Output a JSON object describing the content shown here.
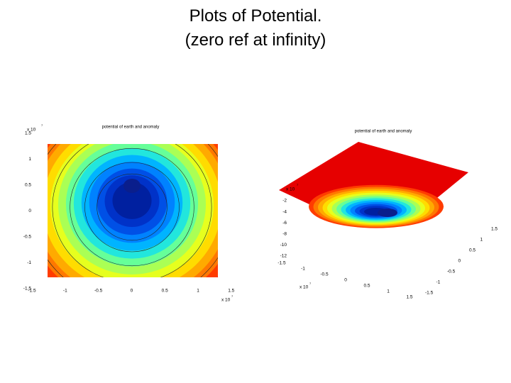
{
  "title": {
    "line1": "Plots of Potential.",
    "line2": "(zero ref at infinity)"
  },
  "left_plot": {
    "title": "potential of earth and anomaly",
    "y_exponent": "x 10",
    "y_exponent_power": "7",
    "x_exponent": "x 10",
    "x_exponent_power": "7",
    "yticks": [
      "1.5",
      "1",
      "0.5",
      "0",
      "-0.5",
      "-1",
      "-1.5"
    ],
    "xticks": [
      "-1.5",
      "-1",
      "-0.5",
      "0",
      "0.5",
      "1",
      "1.5"
    ]
  },
  "right_plot": {
    "title": "potential of earth and anomaly",
    "z_exponent": "x 10",
    "z_exponent_power": "7",
    "zticks": [
      "-2",
      "-4",
      "-6",
      "-8",
      "-10",
      "-12"
    ],
    "x_exponent": "x 10",
    "x_exponent_power": "7",
    "xticks": [
      "-1.5",
      "-1",
      "-0.5",
      "0",
      "0.5",
      "1",
      "1.5"
    ],
    "yticks": [
      "-1.5",
      "-1",
      "-0.5",
      "0",
      "0.5",
      "1",
      "1.5"
    ]
  }
}
